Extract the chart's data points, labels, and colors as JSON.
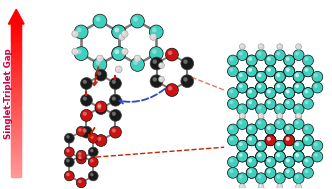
{
  "background_color": "#ffffff",
  "arrow_label": "Singlet-Triplet Gap",
  "label_color": "#cc0044",
  "label_fontsize": 6.2,
  "teal_light": "#3ecfbf",
  "teal_dark": "#1a9e90",
  "dark_atom": "#1a1a1a",
  "dark_atom2": "#2a2a2a",
  "white_atom": "#e8e8e8",
  "red_atom": "#cc1111",
  "gray_bond": "#888888",
  "arrow_red": "#ff0000",
  "arrow_pink": "#ff8899",
  "dashed_red": "#cc2200",
  "dashed_blue": "#3344cc"
}
